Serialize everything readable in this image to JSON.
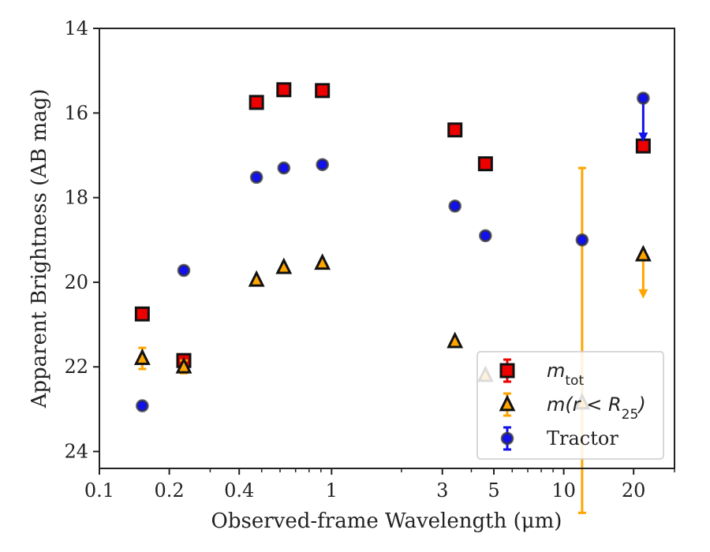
{
  "chart_data": {
    "type": "scatter",
    "xlabel": "Observed-frame Wavelength (μm)",
    "ylabel": "Apparent Brightness (AB mag)",
    "xscale": "log",
    "xlim": [
      0.1,
      30
    ],
    "ylim": [
      24.4,
      14
    ],
    "y_inverted": true,
    "x_ticks": [
      0.1,
      0.2,
      0.4,
      1,
      3,
      5,
      10,
      20
    ],
    "x_tick_labels": [
      "0.1",
      "0.2",
      "0.4",
      "1",
      "3",
      "5",
      "10",
      "20"
    ],
    "y_ticks": [
      14,
      16,
      18,
      20,
      22,
      24
    ],
    "y_tick_labels": [
      "14",
      "16",
      "18",
      "20",
      "22",
      "24"
    ],
    "grid": false,
    "legend_position": "bottom-right",
    "series": [
      {
        "name": "m_tot",
        "legend": {
          "main": "m",
          "sub": "tot",
          "rest": "",
          "rest_sub": "",
          "close": ""
        },
        "marker": "square",
        "color": "#ee0000",
        "edge_color": "#111111",
        "points": [
          {
            "x": 0.153,
            "y": 20.75
          },
          {
            "x": 0.231,
            "y": 21.85
          },
          {
            "x": 0.475,
            "y": 15.75
          },
          {
            "x": 0.623,
            "y": 15.45
          },
          {
            "x": 0.913,
            "y": 15.47
          },
          {
            "x": 3.4,
            "y": 16.4
          },
          {
            "x": 4.6,
            "y": 17.2
          },
          {
            "x": 22.0,
            "y": 16.78
          }
        ]
      },
      {
        "name": "m(r < R25)",
        "legend": {
          "main": "m",
          "sub": "",
          "rest": "(r < R",
          "rest_sub": "25",
          "close": ")"
        },
        "marker": "triangle",
        "color": "#ffa500",
        "edge_color": "#111111",
        "points": [
          {
            "x": 0.153,
            "y": 21.8,
            "yerr": 0.25
          },
          {
            "x": 0.231,
            "y": 22.0,
            "yerr": 0.15
          },
          {
            "x": 0.475,
            "y": 19.95
          },
          {
            "x": 0.623,
            "y": 19.65
          },
          {
            "x": 0.913,
            "y": 19.55
          },
          {
            "x": 3.4,
            "y": 21.4
          },
          {
            "x": 4.6,
            "y": 22.2
          },
          {
            "x": 12.0,
            "y": 22.85,
            "yerr_low": 5.55,
            "yerr_high": 2.6
          },
          {
            "x": 22.0,
            "y": 19.35,
            "upper_limit_to": 20.35
          }
        ]
      },
      {
        "name": "Tractor",
        "legend": {
          "main": "Tractor",
          "sub": "",
          "rest": "",
          "rest_sub": "",
          "close": ""
        },
        "marker": "circle",
        "color": "#1111ee",
        "edge_color": "#333333",
        "points": [
          {
            "x": 0.153,
            "y": 22.92
          },
          {
            "x": 0.231,
            "y": 19.72
          },
          {
            "x": 0.475,
            "y": 17.52
          },
          {
            "x": 0.623,
            "y": 17.3
          },
          {
            "x": 0.913,
            "y": 17.22
          },
          {
            "x": 3.4,
            "y": 18.2
          },
          {
            "x": 4.6,
            "y": 18.9
          },
          {
            "x": 12.0,
            "y": 19.0
          },
          {
            "x": 22.0,
            "y": 15.65,
            "upper_limit_to": 16.65
          }
        ]
      }
    ]
  }
}
